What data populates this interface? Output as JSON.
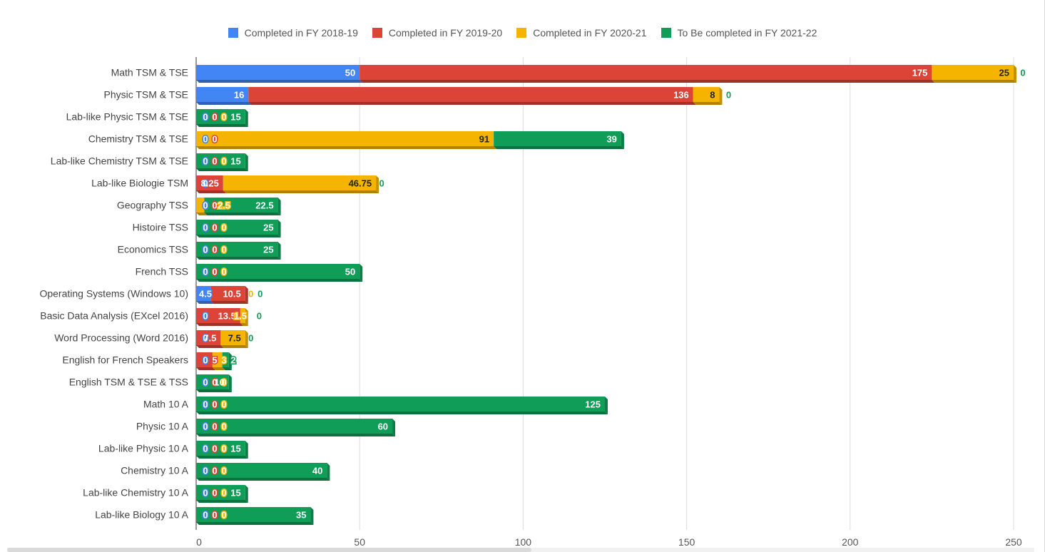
{
  "chart_data": {
    "type": "bar",
    "orientation": "horizontal",
    "stacked": true,
    "title": "",
    "xlabel": "",
    "ylabel": "",
    "xlim": [
      0,
      250
    ],
    "x_ticks": [
      "0",
      "50",
      "100",
      "150",
      "200",
      "250"
    ],
    "grid": true,
    "legend_position": "top",
    "categories": [
      "Math TSM & TSE",
      "Physic TSM & TSE",
      "Lab-like Physic TSM & TSE",
      "Chemistry TSM & TSE",
      "Lab-like Chemistry TSM & TSE",
      "Lab-like Biologie TSM",
      "Geography TSS",
      "Histoire TSS",
      "Economics TSS",
      "French TSS",
      "Operating Systems (Windows 10)",
      "Basic Data Analysis (EXcel 2016)",
      "Word Processing (Word  2016)",
      "English for French Speakers",
      "English TSM & TSE & TSS",
      "Math 10 A",
      "Physic 10 A",
      "Lab-like Physic 10 A",
      "Chemistry 10 A",
      "Lab-like Chemistry 10 A",
      "Lab-like Biology 10 A"
    ],
    "series": [
      {
        "name": "Completed in FY 2018-19",
        "color": "#4285f4",
        "values": [
          50,
          16,
          0,
          0,
          0,
          0,
          0,
          0,
          0,
          0,
          4.5,
          0,
          0,
          0,
          0,
          0,
          0,
          0,
          0,
          0,
          0
        ],
        "labels": [
          "50",
          "16",
          "0",
          "0",
          "0",
          "0",
          "0",
          "0",
          "0",
          "0",
          "4.5",
          "0",
          "0",
          "0",
          "0",
          "0",
          "0",
          "0",
          "0",
          "0",
          "0"
        ]
      },
      {
        "name": "Completed in FY 2019-20",
        "color": "#db4437",
        "values": [
          175,
          136,
          0,
          0,
          0,
          8.25,
          0,
          0,
          0,
          0,
          10.5,
          13.5,
          7.5,
          5,
          0,
          0,
          0,
          0,
          0,
          0,
          0
        ],
        "labels": [
          "175",
          "136",
          "0",
          "0",
          "0",
          "8.25",
          "0",
          "0",
          "0",
          "0",
          "10.5",
          "13.5",
          "7.5",
          "5",
          "0",
          "0",
          "0",
          "0",
          "0",
          "0",
          "0"
        ]
      },
      {
        "name": "Completed in FY 2020-21",
        "color": "#f4b400",
        "values": [
          25,
          8,
          0,
          91,
          0,
          46.75,
          2.5,
          0,
          0,
          0,
          0,
          1.5,
          7.5,
          3,
          0,
          0,
          0,
          0,
          0,
          0,
          0
        ],
        "labels": [
          "25",
          "8",
          "0",
          "91",
          "0",
          "46.75",
          "2.5",
          "0",
          "0",
          "0",
          "0",
          "1.5",
          "7.5",
          "3",
          "0",
          "0",
          "0",
          "0",
          "0",
          "0",
          "0"
        ]
      },
      {
        "name": "To Be completed in FY 2021-22",
        "color": "#0f9d58",
        "values": [
          0,
          0,
          15,
          39,
          15,
          0,
          22.5,
          25,
          25,
          50,
          0,
          0,
          0,
          2,
          10,
          125,
          60,
          15,
          40,
          15,
          35
        ],
        "labels": [
          "0",
          "0",
          "15",
          "39",
          "15",
          "0",
          "22.5",
          "25",
          "25",
          "50",
          "0",
          "0",
          "0",
          "2",
          "10",
          "125",
          "60",
          "15",
          "40",
          "15",
          "35"
        ]
      }
    ]
  }
}
